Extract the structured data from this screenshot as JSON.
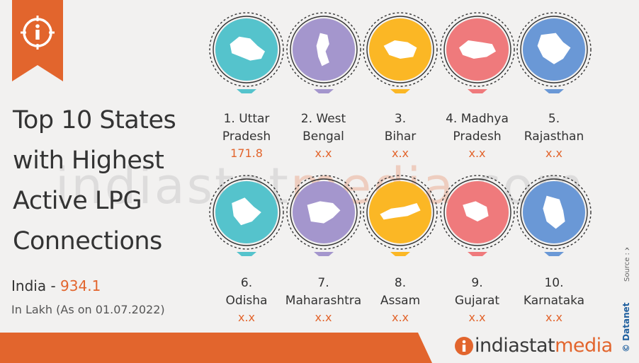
{
  "title_lines": [
    "Top 10 States",
    "with Highest",
    "Active LPG",
    "Connections"
  ],
  "india": {
    "label": "India",
    "sep": "-",
    "value": "934.1"
  },
  "unit_note": "In Lakh (As on 01.07.2022)",
  "watermark": {
    "a": "indiastat",
    "b": "media",
    "c": ".com"
  },
  "source": "Source : xxx",
  "credit": "© Datanet",
  "brand": {
    "a": "indiastat",
    "b": "media"
  },
  "colors": {
    "accent": "#e2652d",
    "teal": "#55c3cc",
    "purple": "#a496cd",
    "yellow": "#fbb725",
    "red": "#ef7a7c",
    "blue": "#6a98d6"
  },
  "states": [
    {
      "name_l1": "1. Uttar",
      "name_l2": "Pradesh",
      "value": "171.8",
      "color": "#55c3cc",
      "icon": "uttar-pradesh-map-icon"
    },
    {
      "name_l1": "2. West",
      "name_l2": "Bengal",
      "value": "x.x",
      "color": "#a496cd",
      "icon": "west-bengal-map-icon"
    },
    {
      "name_l1": "3.",
      "name_l2": "Bihar",
      "value": "x.x",
      "color": "#fbb725",
      "icon": "bihar-map-icon"
    },
    {
      "name_l1": "4. Madhya",
      "name_l2": "Pradesh",
      "value": "x.x",
      "color": "#ef7a7c",
      "icon": "madhya-pradesh-map-icon"
    },
    {
      "name_l1": "5.",
      "name_l2": "Rajasthan",
      "value": "x.x",
      "color": "#6a98d6",
      "icon": "rajasthan-map-icon"
    },
    {
      "name_l1": "6.",
      "name_l2": "Odisha",
      "value": "x.x",
      "color": "#55c3cc",
      "icon": "odisha-map-icon"
    },
    {
      "name_l1": "7.",
      "name_l2": "Maharashtra",
      "value": "x.x",
      "color": "#a496cd",
      "icon": "maharashtra-map-icon"
    },
    {
      "name_l1": "8.",
      "name_l2": "Assam",
      "value": "x.x",
      "color": "#fbb725",
      "icon": "assam-map-icon"
    },
    {
      "name_l1": "9.",
      "name_l2": "Gujarat",
      "value": "x.x",
      "color": "#ef7a7c",
      "icon": "gujarat-map-icon"
    },
    {
      "name_l1": "10.",
      "name_l2": "Karnataka",
      "value": "x.x",
      "color": "#6a98d6",
      "icon": "karnataka-map-icon"
    }
  ]
}
